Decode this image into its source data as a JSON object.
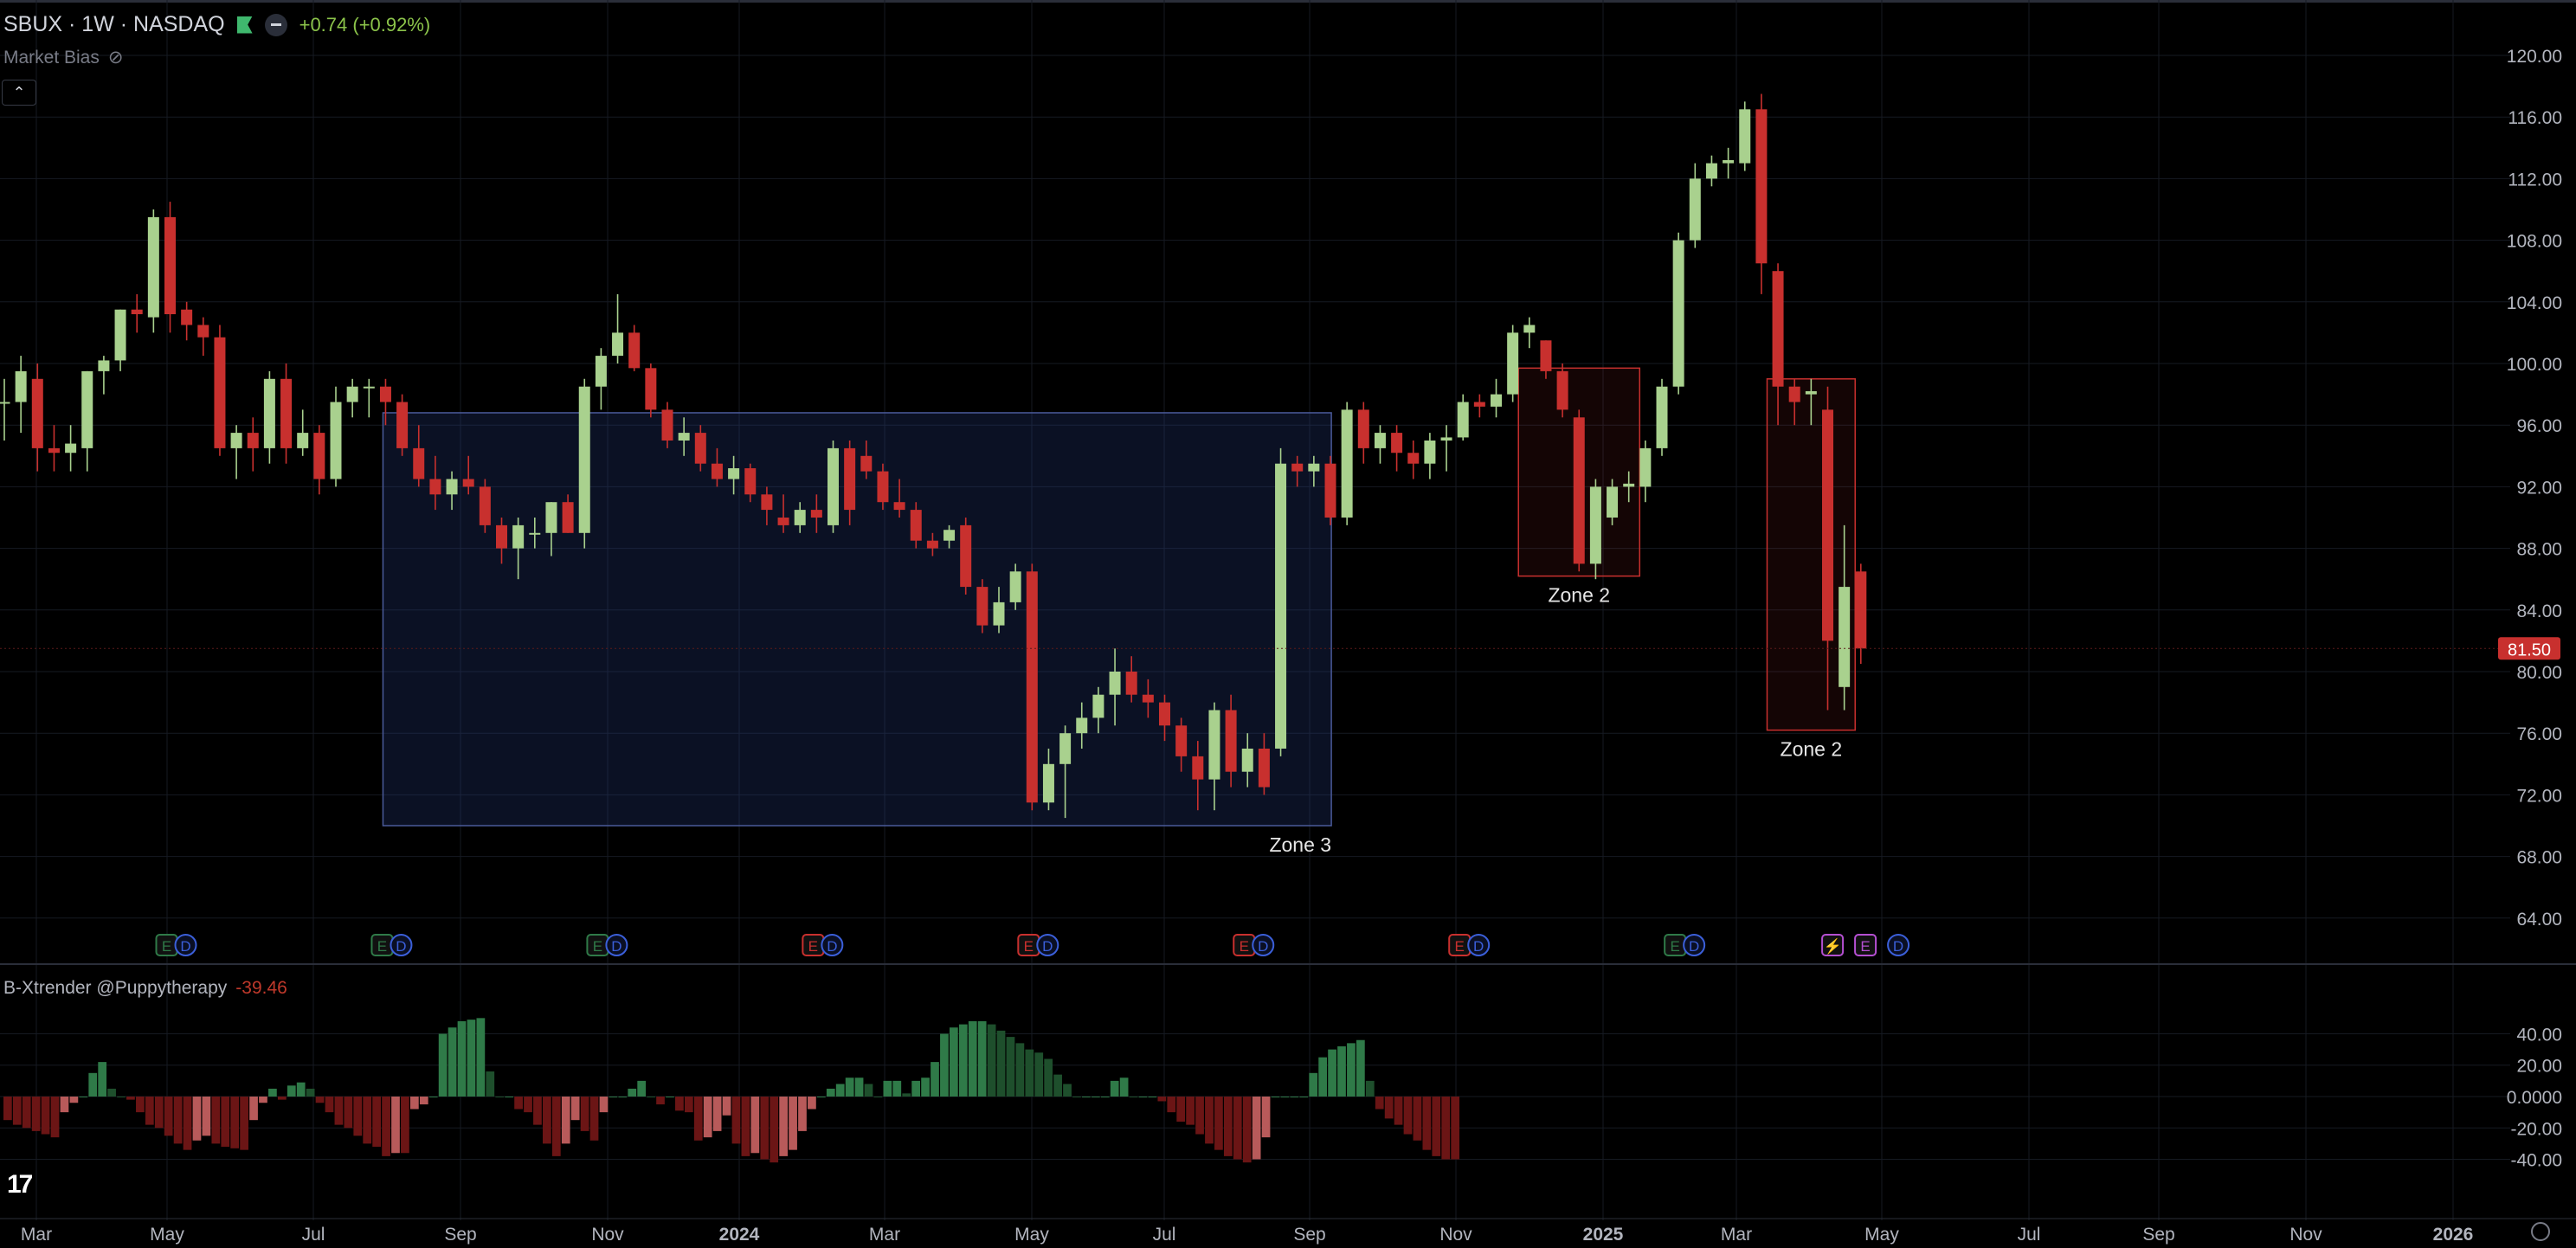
{
  "header": {
    "symbol": "SBUX · 1W · NASDAQ",
    "change": "+0.74 (+0.92%)",
    "indicator1": "Market Bias",
    "indicator2_name": "B-Xtrender @Puppytherapy",
    "indicator2_value": "-39.46",
    "logo": "17"
  },
  "colors": {
    "up": "#a9d18e",
    "down": "#c8302e",
    "hist_up_strong": "#2f7a48",
    "hist_up_weak": "#1e4f2c",
    "hist_down_strong": "#6b1515",
    "hist_down_weak": "#b85a5a",
    "grid": "#161a22",
    "axis_text": "#b2b5be",
    "zone_blue": "#4a5a9a",
    "zone_red": "#c8302e",
    "price_label": "#c8302e"
  },
  "chart_data": [
    {
      "type": "candlestick",
      "title": "SBUX · 1W · NASDAQ",
      "x_ticks": [
        "Mar",
        "May",
        "Jul",
        "Sep",
        "Nov",
        "2024",
        "Mar",
        "May",
        "Jul",
        "Sep",
        "Nov",
        "2025",
        "Mar",
        "May",
        "Jul",
        "Sep",
        "Nov",
        "2026"
      ],
      "y_ticks": [
        "120.00",
        "116.00",
        "112.00",
        "108.00",
        "104.00",
        "100.00",
        "96.00",
        "92.00",
        "88.00",
        "84.00",
        "80.00",
        "76.00",
        "72.00",
        "68.00",
        "64.00"
      ],
      "ylim": [
        62,
        122
      ],
      "last_price": "81.50",
      "candles": [
        {
          "o": 97.5,
          "h": 99,
          "l": 95,
          "c": 97.5
        },
        {
          "o": 97.5,
          "h": 100.5,
          "l": 95.5,
          "c": 99.5
        },
        {
          "o": 99,
          "h": 100,
          "l": 93,
          "c": 94.5
        },
        {
          "o": 94.5,
          "h": 96,
          "l": 93,
          "c": 94.2
        },
        {
          "o": 94.2,
          "h": 96,
          "l": 93,
          "c": 94.8
        },
        {
          "o": 94.5,
          "h": 99.5,
          "l": 93,
          "c": 99.5
        },
        {
          "o": 99.5,
          "h": 100.5,
          "l": 98,
          "c": 100.2
        },
        {
          "o": 100.2,
          "h": 103.5,
          "l": 99.5,
          "c": 103.5
        },
        {
          "o": 103.5,
          "h": 104.5,
          "l": 102,
          "c": 103.2
        },
        {
          "o": 103,
          "h": 110,
          "l": 102,
          "c": 109.5
        },
        {
          "o": 109.5,
          "h": 110.5,
          "l": 102,
          "c": 103.2
        },
        {
          "o": 103.5,
          "h": 104,
          "l": 101.5,
          "c": 102.5
        },
        {
          "o": 102.5,
          "h": 103,
          "l": 100.5,
          "c": 101.7
        },
        {
          "o": 101.7,
          "h": 102.5,
          "l": 94,
          "c": 94.5
        },
        {
          "o": 94.5,
          "h": 96,
          "l": 92.5,
          "c": 95.5
        },
        {
          "o": 95.5,
          "h": 96.5,
          "l": 93,
          "c": 94.5
        },
        {
          "o": 94.5,
          "h": 99.5,
          "l": 93.5,
          "c": 99
        },
        {
          "o": 99,
          "h": 100,
          "l": 93.5,
          "c": 94.5
        },
        {
          "o": 94.5,
          "h": 97,
          "l": 94,
          "c": 95.5
        },
        {
          "o": 95.5,
          "h": 96,
          "l": 91.5,
          "c": 92.5
        },
        {
          "o": 92.5,
          "h": 98.5,
          "l": 92,
          "c": 97.5
        },
        {
          "o": 97.5,
          "h": 99,
          "l": 96.5,
          "c": 98.5
        },
        {
          "o": 98.5,
          "h": 99,
          "l": 96.5,
          "c": 98.5
        },
        {
          "o": 98.5,
          "h": 99,
          "l": 96,
          "c": 97.5
        },
        {
          "o": 97.5,
          "h": 98,
          "l": 94,
          "c": 94.5
        },
        {
          "o": 94.5,
          "h": 96,
          "l": 92,
          "c": 92.5
        },
        {
          "o": 92.5,
          "h": 94,
          "l": 90.5,
          "c": 91.5
        },
        {
          "o": 91.5,
          "h": 93,
          "l": 90.5,
          "c": 92.5
        },
        {
          "o": 92.5,
          "h": 94,
          "l": 91.5,
          "c": 92
        },
        {
          "o": 92,
          "h": 92.5,
          "l": 89,
          "c": 89.5
        },
        {
          "o": 89.5,
          "h": 90,
          "l": 87,
          "c": 88
        },
        {
          "o": 88,
          "h": 90,
          "l": 86,
          "c": 89.5
        },
        {
          "o": 89,
          "h": 90,
          "l": 88,
          "c": 89
        },
        {
          "o": 89,
          "h": 91,
          "l": 87.5,
          "c": 91
        },
        {
          "o": 91,
          "h": 91.5,
          "l": 89,
          "c": 89
        },
        {
          "o": 89,
          "h": 99,
          "l": 88,
          "c": 98.5
        },
        {
          "o": 98.5,
          "h": 101,
          "l": 97,
          "c": 100.5
        },
        {
          "o": 100.5,
          "h": 104.5,
          "l": 100,
          "c": 102
        },
        {
          "o": 102,
          "h": 102.5,
          "l": 99.5,
          "c": 99.7
        },
        {
          "o": 99.7,
          "h": 100,
          "l": 96.5,
          "c": 97
        },
        {
          "o": 97,
          "h": 97.5,
          "l": 94.5,
          "c": 95
        },
        {
          "o": 95,
          "h": 96.5,
          "l": 94,
          "c": 95.5
        },
        {
          "o": 95.5,
          "h": 96,
          "l": 93,
          "c": 93.5
        },
        {
          "o": 93.5,
          "h": 94.5,
          "l": 92,
          "c": 92.5
        },
        {
          "o": 92.5,
          "h": 94,
          "l": 91.5,
          "c": 93.2
        },
        {
          "o": 93.2,
          "h": 93.5,
          "l": 91,
          "c": 91.5
        },
        {
          "o": 91.5,
          "h": 92,
          "l": 89.5,
          "c": 90.5
        },
        {
          "o": 90,
          "h": 91.5,
          "l": 89,
          "c": 89.5
        },
        {
          "o": 89.5,
          "h": 91,
          "l": 89,
          "c": 90.5
        },
        {
          "o": 90.5,
          "h": 91.5,
          "l": 89,
          "c": 90
        },
        {
          "o": 89.5,
          "h": 95,
          "l": 89,
          "c": 94.5
        },
        {
          "o": 94.5,
          "h": 95,
          "l": 89.5,
          "c": 90.5
        },
        {
          "o": 94,
          "h": 95,
          "l": 92.5,
          "c": 93
        },
        {
          "o": 93,
          "h": 93.5,
          "l": 90.5,
          "c": 91
        },
        {
          "o": 91,
          "h": 92.5,
          "l": 90,
          "c": 90.5
        },
        {
          "o": 90.5,
          "h": 91,
          "l": 88,
          "c": 88.5
        },
        {
          "o": 88.5,
          "h": 89,
          "l": 87.5,
          "c": 88
        },
        {
          "o": 88.5,
          "h": 89.5,
          "l": 88,
          "c": 89.2
        },
        {
          "o": 89.5,
          "h": 90,
          "l": 85,
          "c": 85.5
        },
        {
          "o": 85.5,
          "h": 86,
          "l": 82.5,
          "c": 83
        },
        {
          "o": 83,
          "h": 85.5,
          "l": 82.5,
          "c": 84.5
        },
        {
          "o": 84.5,
          "h": 87,
          "l": 84,
          "c": 86.5
        },
        {
          "o": 86.5,
          "h": 87,
          "l": 71,
          "c": 71.5
        },
        {
          "o": 71.5,
          "h": 75,
          "l": 71,
          "c": 74
        },
        {
          "o": 74,
          "h": 76.5,
          "l": 70.5,
          "c": 76
        },
        {
          "o": 76,
          "h": 78,
          "l": 75,
          "c": 77
        },
        {
          "o": 77,
          "h": 79,
          "l": 76,
          "c": 78.5
        },
        {
          "o": 78.5,
          "h": 81.5,
          "l": 76.5,
          "c": 80
        },
        {
          "o": 80,
          "h": 81,
          "l": 78,
          "c": 78.5
        },
        {
          "o": 78.5,
          "h": 79.5,
          "l": 77,
          "c": 78
        },
        {
          "o": 78,
          "h": 78.5,
          "l": 75.5,
          "c": 76.5
        },
        {
          "o": 76.5,
          "h": 77,
          "l": 73.5,
          "c": 74.5
        },
        {
          "o": 74.5,
          "h": 75.5,
          "l": 71,
          "c": 73
        },
        {
          "o": 73,
          "h": 78,
          "l": 71,
          "c": 77.5
        },
        {
          "o": 77.5,
          "h": 78.5,
          "l": 72.5,
          "c": 73.5
        },
        {
          "o": 73.5,
          "h": 76,
          "l": 72.5,
          "c": 75
        },
        {
          "o": 75,
          "h": 76,
          "l": 72,
          "c": 72.5
        },
        {
          "o": 75,
          "h": 94.5,
          "l": 74.5,
          "c": 93.5
        },
        {
          "o": 93.5,
          "h": 94,
          "l": 92,
          "c": 93
        },
        {
          "o": 93,
          "h": 94,
          "l": 92,
          "c": 93.5
        },
        {
          "o": 93.5,
          "h": 94,
          "l": 89.5,
          "c": 90
        },
        {
          "o": 90,
          "h": 97.5,
          "l": 89.5,
          "c": 97
        },
        {
          "o": 97,
          "h": 97.5,
          "l": 93.5,
          "c": 94.5
        },
        {
          "o": 94.5,
          "h": 96,
          "l": 93.5,
          "c": 95.5
        },
        {
          "o": 95.5,
          "h": 96,
          "l": 93,
          "c": 94.2
        },
        {
          "o": 94.2,
          "h": 95,
          "l": 92.5,
          "c": 93.5
        },
        {
          "o": 93.5,
          "h": 95.5,
          "l": 92.5,
          "c": 95
        },
        {
          "o": 95,
          "h": 96,
          "l": 93,
          "c": 95.2
        },
        {
          "o": 95.2,
          "h": 98,
          "l": 95,
          "c": 97.5
        },
        {
          "o": 97.5,
          "h": 98,
          "l": 96.5,
          "c": 97.2
        },
        {
          "o": 97.2,
          "h": 99,
          "l": 96.5,
          "c": 98
        },
        {
          "o": 98,
          "h": 102.5,
          "l": 97.5,
          "c": 102
        },
        {
          "o": 102,
          "h": 103,
          "l": 101,
          "c": 102.5
        },
        {
          "o": 101.5,
          "h": 101.5,
          "l": 99,
          "c": 99.5
        },
        {
          "o": 99.5,
          "h": 100,
          "l": 96.5,
          "c": 97
        },
        {
          "o": 96.5,
          "h": 97,
          "l": 86.5,
          "c": 87
        },
        {
          "o": 87,
          "h": 92.5,
          "l": 86,
          "c": 92
        },
        {
          "o": 90,
          "h": 92.5,
          "l": 89.5,
          "c": 92
        },
        {
          "o": 92,
          "h": 93,
          "l": 91,
          "c": 92.2
        },
        {
          "o": 92,
          "h": 95,
          "l": 91,
          "c": 94.5
        },
        {
          "o": 94.5,
          "h": 99,
          "l": 94,
          "c": 98.5
        },
        {
          "o": 98.5,
          "h": 108.5,
          "l": 98,
          "c": 108
        },
        {
          "o": 108,
          "h": 113,
          "l": 107.5,
          "c": 112
        },
        {
          "o": 112,
          "h": 113.5,
          "l": 111.5,
          "c": 113
        },
        {
          "o": 113,
          "h": 114,
          "l": 112,
          "c": 113.2
        },
        {
          "o": 113,
          "h": 117,
          "l": 112.5,
          "c": 116.5
        },
        {
          "o": 116.5,
          "h": 117.5,
          "l": 104.5,
          "c": 106.5
        },
        {
          "o": 106,
          "h": 106.5,
          "l": 96,
          "c": 98.5
        },
        {
          "o": 98.5,
          "h": 99,
          "l": 96,
          "c": 97.5
        },
        {
          "o": 98,
          "h": 99,
          "l": 96,
          "c": 98.2
        },
        {
          "o": 97,
          "h": 98.5,
          "l": 77.5,
          "c": 82
        },
        {
          "o": 79,
          "h": 89.5,
          "l": 77.5,
          "c": 85.5
        },
        {
          "o": 86.5,
          "h": 87,
          "l": 80.5,
          "c": 81.5
        }
      ],
      "zones": [
        {
          "label": "Zone 3",
          "x0": 23,
          "x1": 79.9,
          "ytop": 96.8,
          "ybot": 70
        },
        {
          "label": "Zone 2",
          "x0": 91.5,
          "x1": 98.5,
          "ytop": 99.7,
          "ybot": 86.2
        },
        {
          "label": "Zone 2",
          "x0": 106.5,
          "x1": 111.5,
          "ytop": 99,
          "ybot": 76.2
        }
      ],
      "event_markers": [
        {
          "xi": 10,
          "marks": [
            "E",
            "D"
          ],
          "e_color": "#2f7a48"
        },
        {
          "xi": 23,
          "marks": [
            "E",
            "D"
          ],
          "e_color": "#2f7a48"
        },
        {
          "xi": 36,
          "marks": [
            "E",
            "D"
          ],
          "e_color": "#2f7a48"
        },
        {
          "xi": 49,
          "marks": [
            "E",
            "D"
          ],
          "e_color": "#c8302e"
        },
        {
          "xi": 62,
          "marks": [
            "E",
            "D"
          ],
          "e_color": "#c8302e"
        },
        {
          "xi": 75,
          "marks": [
            "E",
            "D"
          ],
          "e_color": "#c8302e"
        },
        {
          "xi": 88,
          "marks": [
            "E",
            "D"
          ],
          "e_color": "#c8302e"
        },
        {
          "xi": 101,
          "marks": [
            "E",
            "D"
          ],
          "e_color": "#2f7a48"
        },
        {
          "xi": 110.5,
          "marks": [
            "⚡",
            "E",
            "D"
          ],
          "e_color": "#b44fd1"
        }
      ]
    },
    {
      "type": "bar",
      "title": "B-Xtrender @Puppytherapy",
      "y_ticks": [
        "40.00",
        "20.00",
        "0.0000",
        "-20.00",
        "-40.00"
      ],
      "ylim": [
        -50,
        50
      ],
      "values": [
        -15,
        -18,
        -20,
        -22,
        -24,
        -26,
        -10,
        -4,
        0,
        15,
        22,
        5,
        0,
        -2,
        -10,
        -18,
        -20,
        -25,
        -30,
        -34,
        -28,
        -25,
        -30,
        -32,
        -33,
        -34,
        -15,
        -4,
        5,
        -2,
        7,
        9,
        5,
        -4,
        -10,
        -18,
        -20,
        -25,
        -30,
        -32,
        -38,
        -36,
        -36,
        -8,
        -5,
        0,
        40,
        44,
        48,
        49,
        50,
        16,
        0,
        0,
        -8,
        -10,
        -18,
        -30,
        -38,
        -30,
        -15,
        -22,
        -28,
        -10,
        0,
        0,
        5,
        10,
        0,
        -5,
        0,
        -9,
        -10,
        -28,
        -26,
        -22,
        -12,
        -30,
        -38,
        -36,
        -40,
        -42,
        -38,
        -34,
        -22,
        -8,
        0,
        5,
        8,
        12,
        12,
        8,
        0,
        10,
        10,
        2,
        10,
        12,
        22,
        40,
        44,
        46,
        48,
        48,
        46,
        42,
        38,
        34,
        30,
        28,
        24,
        14,
        8,
        0,
        0,
        0,
        0,
        10,
        12,
        0,
        0,
        0,
        -3,
        -10,
        -16,
        -18,
        -24,
        -30,
        -34,
        -38,
        -40,
        -42,
        -40,
        -26,
        0,
        0,
        0,
        0,
        15,
        25,
        30,
        32,
        34,
        36,
        10,
        -8,
        -14,
        -18,
        -24,
        -28,
        -34,
        -38,
        -40,
        -40
      ],
      "last_value": "-39.46"
    }
  ]
}
